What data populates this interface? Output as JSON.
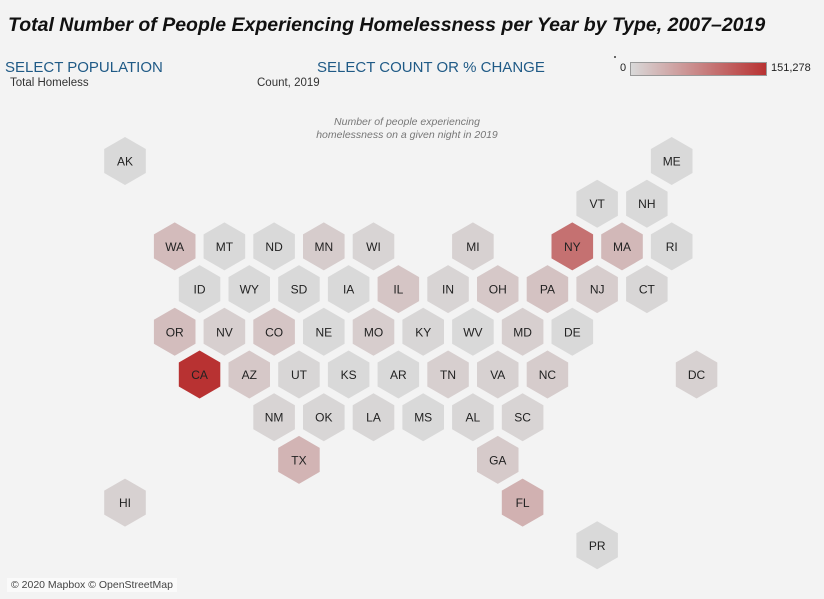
{
  "title": "Total Number of People Experiencing Homelessness per Year by Type, 2007–2019",
  "controls": {
    "population_label": "SELECT POPULATION",
    "population_value": "Total Homeless",
    "count_label": "SELECT COUNT OR % CHANGE",
    "count_value": "Count, 2019"
  },
  "legend": {
    "min_label": "0",
    "max_label": "151,278",
    "min_color": "#d9d9d9",
    "max_color": "#b83232"
  },
  "subcaption_line1": "Number of people experiencing",
  "subcaption_line2": "homelessness on a given night in 2019",
  "attribution": "© 2020 Mapbox © OpenStreetMap",
  "hex_map": {
    "neutral_color": "#d9d9d9",
    "states": [
      {
        "code": "AK",
        "intensity": 0.0,
        "row": 0,
        "col": 0
      },
      {
        "code": "ME",
        "intensity": 0.0,
        "row": 0,
        "col": 11
      },
      {
        "code": "VT",
        "intensity": 0.0,
        "row": 1,
        "col": 9.5
      },
      {
        "code": "NH",
        "intensity": 0.0,
        "row": 1,
        "col": 10.5
      },
      {
        "code": "WA",
        "intensity": 0.18,
        "row": 2,
        "col": 1
      },
      {
        "code": "MT",
        "intensity": 0.0,
        "row": 2,
        "col": 2
      },
      {
        "code": "ND",
        "intensity": 0.0,
        "row": 2,
        "col": 3
      },
      {
        "code": "MN",
        "intensity": 0.08,
        "row": 2,
        "col": 4
      },
      {
        "code": "WI",
        "intensity": 0.03,
        "row": 2,
        "col": 5
      },
      {
        "code": "MI",
        "intensity": 0.05,
        "row": 2,
        "col": 7
      },
      {
        "code": "NY",
        "intensity": 0.62,
        "row": 2,
        "col": 9
      },
      {
        "code": "MA",
        "intensity": 0.2,
        "row": 2,
        "col": 10
      },
      {
        "code": "RI",
        "intensity": 0.0,
        "row": 2,
        "col": 11
      },
      {
        "code": "ID",
        "intensity": 0.0,
        "row": 3,
        "col": 1.5
      },
      {
        "code": "WY",
        "intensity": 0.0,
        "row": 3,
        "col": 2.5
      },
      {
        "code": "SD",
        "intensity": 0.0,
        "row": 3,
        "col": 3.5
      },
      {
        "code": "IA",
        "intensity": 0.0,
        "row": 3,
        "col": 4.5
      },
      {
        "code": "IL",
        "intensity": 0.12,
        "row": 3,
        "col": 5.5
      },
      {
        "code": "IN",
        "intensity": 0.03,
        "row": 3,
        "col": 6.5
      },
      {
        "code": "OH",
        "intensity": 0.1,
        "row": 3,
        "col": 7.5
      },
      {
        "code": "PA",
        "intensity": 0.14,
        "row": 3,
        "col": 8.5
      },
      {
        "code": "NJ",
        "intensity": 0.07,
        "row": 3,
        "col": 9.5
      },
      {
        "code": "CT",
        "intensity": 0.02,
        "row": 3,
        "col": 10.5
      },
      {
        "code": "OR",
        "intensity": 0.17,
        "row": 4,
        "col": 1
      },
      {
        "code": "NV",
        "intensity": 0.06,
        "row": 4,
        "col": 2
      },
      {
        "code": "CO",
        "intensity": 0.12,
        "row": 4,
        "col": 3
      },
      {
        "code": "NE",
        "intensity": 0.0,
        "row": 4,
        "col": 4
      },
      {
        "code": "MO",
        "intensity": 0.07,
        "row": 4,
        "col": 5
      },
      {
        "code": "KY",
        "intensity": 0.02,
        "row": 4,
        "col": 6
      },
      {
        "code": "WV",
        "intensity": 0.0,
        "row": 4,
        "col": 7
      },
      {
        "code": "MD",
        "intensity": 0.06,
        "row": 4,
        "col": 8
      },
      {
        "code": "DE",
        "intensity": 0.0,
        "row": 4,
        "col": 9
      },
      {
        "code": "CA",
        "intensity": 1.0,
        "row": 5,
        "col": 1.5
      },
      {
        "code": "AZ",
        "intensity": 0.1,
        "row": 5,
        "col": 2.5
      },
      {
        "code": "UT",
        "intensity": 0.02,
        "row": 5,
        "col": 3.5
      },
      {
        "code": "KS",
        "intensity": 0.0,
        "row": 5,
        "col": 4.5
      },
      {
        "code": "AR",
        "intensity": 0.0,
        "row": 5,
        "col": 5.5
      },
      {
        "code": "TN",
        "intensity": 0.06,
        "row": 5,
        "col": 6.5
      },
      {
        "code": "VA",
        "intensity": 0.05,
        "row": 5,
        "col": 7.5
      },
      {
        "code": "NC",
        "intensity": 0.08,
        "row": 5,
        "col": 8.5
      },
      {
        "code": "DC",
        "intensity": 0.05,
        "row": 5,
        "col": 11.5
      },
      {
        "code": "NM",
        "intensity": 0.03,
        "row": 6,
        "col": 3
      },
      {
        "code": "OK",
        "intensity": 0.02,
        "row": 6,
        "col": 4
      },
      {
        "code": "LA",
        "intensity": 0.02,
        "row": 6,
        "col": 5
      },
      {
        "code": "MS",
        "intensity": 0.0,
        "row": 6,
        "col": 6
      },
      {
        "code": "AL",
        "intensity": 0.02,
        "row": 6,
        "col": 7
      },
      {
        "code": "SC",
        "intensity": 0.03,
        "row": 6,
        "col": 8
      },
      {
        "code": "TX",
        "intensity": 0.22,
        "row": 7,
        "col": 3.5
      },
      {
        "code": "GA",
        "intensity": 0.09,
        "row": 7,
        "col": 7.5
      },
      {
        "code": "HI",
        "intensity": 0.05,
        "row": 8,
        "col": 0
      },
      {
        "code": "FL",
        "intensity": 0.24,
        "row": 8,
        "col": 8
      },
      {
        "code": "PR",
        "intensity": 0.0,
        "row": 9,
        "col": 9.5
      }
    ]
  }
}
